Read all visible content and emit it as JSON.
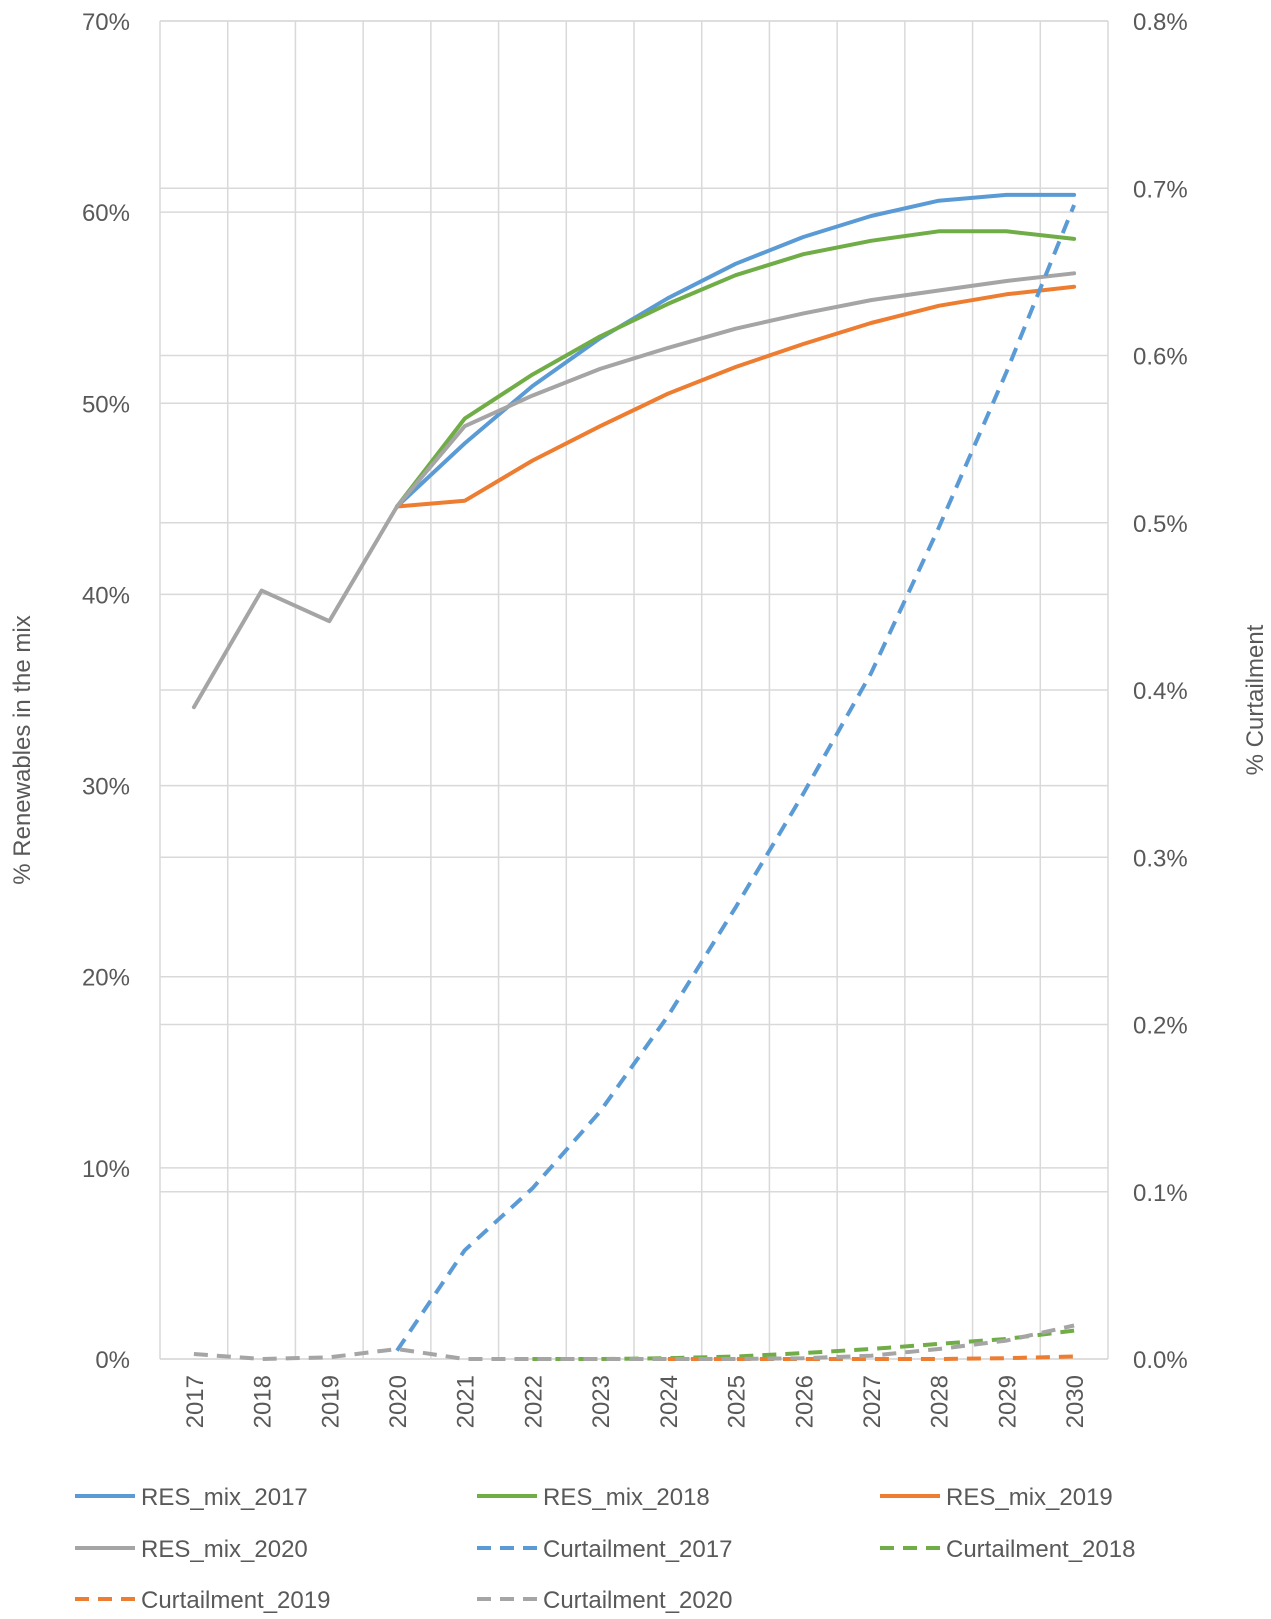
{
  "chart_data": {
    "type": "line",
    "x": [
      "2017",
      "2018",
      "2019",
      "2020",
      "2021",
      "2022",
      "2023",
      "2024",
      "2025",
      "2026",
      "2027",
      "2028",
      "2029",
      "2030"
    ],
    "xlabel": "",
    "ylabel_left": "% Renewables in the mix",
    "ylabel_right": "% Curtailment",
    "ylim_left": [
      0,
      0.7
    ],
    "ylim_right": [
      0,
      0.008
    ],
    "yticks_left": [
      "0%",
      "10%",
      "20%",
      "30%",
      "40%",
      "50%",
      "60%",
      "70%"
    ],
    "yticks_right": [
      "0.0%",
      "0.1%",
      "0.2%",
      "0.3%",
      "0.4%",
      "0.5%",
      "0.6%",
      "0.7%",
      "0.8%"
    ],
    "grid": true,
    "legend_position": "bottom",
    "series": [
      {
        "name": "RES_mix_2017",
        "axis": "left",
        "style": "solid",
        "color": "#5B9BD5",
        "values": [
          null,
          null,
          null,
          0.446,
          0.479,
          0.509,
          0.534,
          0.555,
          0.573,
          0.587,
          0.598,
          0.606,
          0.609,
          0.609
        ]
      },
      {
        "name": "RES_mix_2018",
        "axis": "left",
        "style": "solid",
        "color": "#70AD47",
        "values": [
          null,
          null,
          null,
          0.446,
          0.492,
          0.515,
          0.535,
          0.552,
          0.567,
          0.578,
          0.585,
          0.59,
          0.59,
          0.586
        ]
      },
      {
        "name": "RES_mix_2019",
        "axis": "left",
        "style": "solid",
        "color": "#ED7D31",
        "values": [
          null,
          null,
          null,
          0.446,
          0.449,
          0.47,
          0.488,
          0.505,
          0.519,
          0.531,
          0.542,
          0.551,
          0.557,
          0.561
        ]
      },
      {
        "name": "RES_mix_2020",
        "axis": "left",
        "style": "solid",
        "color": "#A5A5A5",
        "values": [
          0.341,
          0.402,
          0.386,
          0.446,
          0.488,
          0.504,
          0.518,
          0.529,
          0.539,
          0.547,
          0.554,
          0.559,
          0.564,
          0.568
        ]
      },
      {
        "name": "Curtailment_2017",
        "axis": "right",
        "style": "dashed",
        "color": "#5B9BD5",
        "values": [
          null,
          null,
          null,
          5e-05,
          0.00065,
          0.00102,
          0.00148,
          0.00205,
          0.0027,
          0.00338,
          0.0041,
          0.00497,
          0.0059,
          0.0069
        ]
      },
      {
        "name": "Curtailment_2018",
        "axis": "right",
        "style": "dashed",
        "color": "#70AD47",
        "values": [
          null,
          null,
          null,
          null,
          null,
          0.0,
          0.0,
          5e-06,
          1.5e-05,
          3.5e-05,
          6e-05,
          9e-05,
          0.00012,
          0.00017
        ]
      },
      {
        "name": "Curtailment_2019",
        "axis": "right",
        "style": "dashed",
        "color": "#ED7D31",
        "values": [
          null,
          null,
          null,
          null,
          null,
          null,
          null,
          0.0,
          0.0,
          0.0,
          0.0,
          0.0,
          5e-06,
          1.5e-05
        ]
      },
      {
        "name": "Curtailment_2020",
        "axis": "right",
        "style": "dashed",
        "color": "#A5A5A5",
        "values": [
          3e-05,
          0.0,
          1e-05,
          6e-05,
          0.0,
          0.0,
          0.0,
          0.0,
          0.0,
          5e-06,
          2e-05,
          6e-05,
          0.00011,
          0.0002
        ]
      }
    ]
  },
  "colors": {
    "gridline": "#D9D9D9",
    "text": "#595959",
    "background": "#FFFFFF"
  }
}
